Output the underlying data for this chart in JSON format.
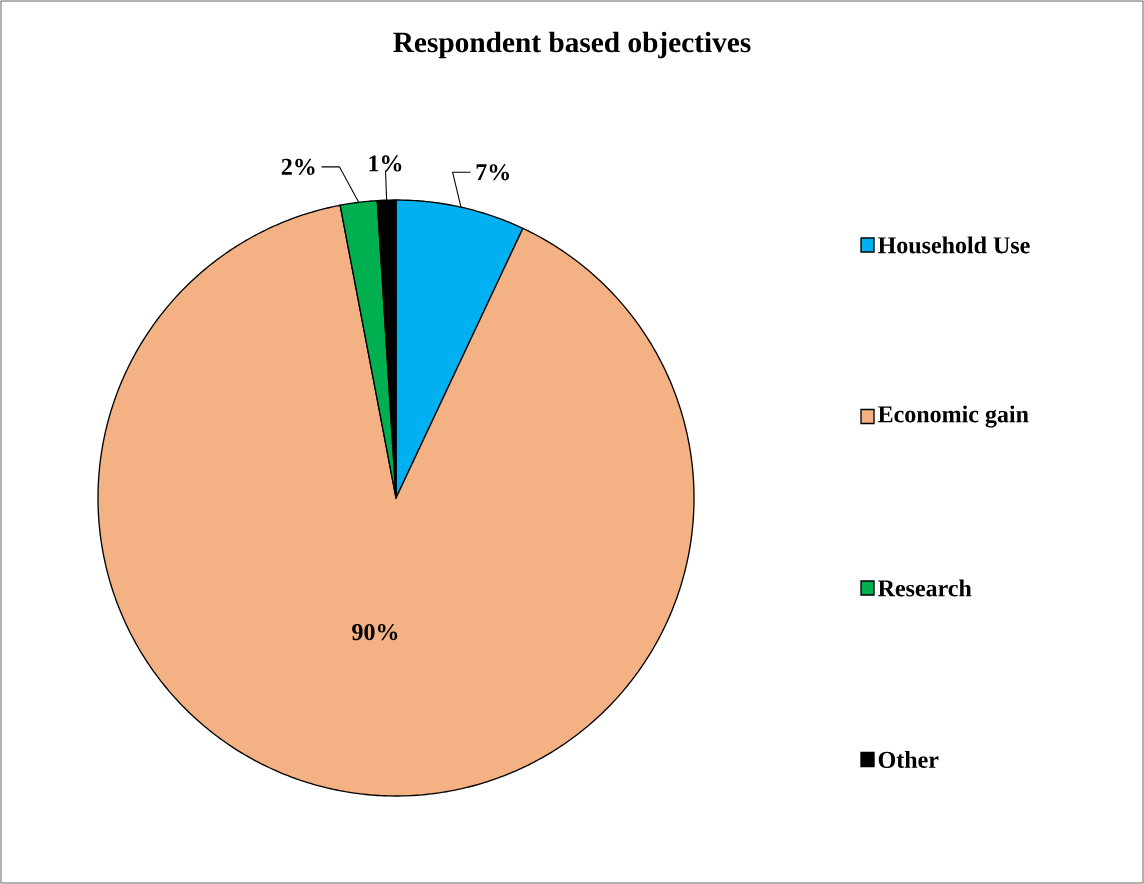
{
  "chart_data": {
    "type": "pie",
    "title": "Respondent based objectives",
    "categories": [
      "Household Use",
      "Economic gain",
      "Research",
      "Other"
    ],
    "values": [
      7,
      90,
      2,
      1
    ],
    "colors": [
      "#00b0f0",
      "#f4b183",
      "#00b050",
      "#000000"
    ],
    "value_labels": [
      "7%",
      "90%",
      "2%",
      "1%"
    ],
    "legend": "right"
  }
}
